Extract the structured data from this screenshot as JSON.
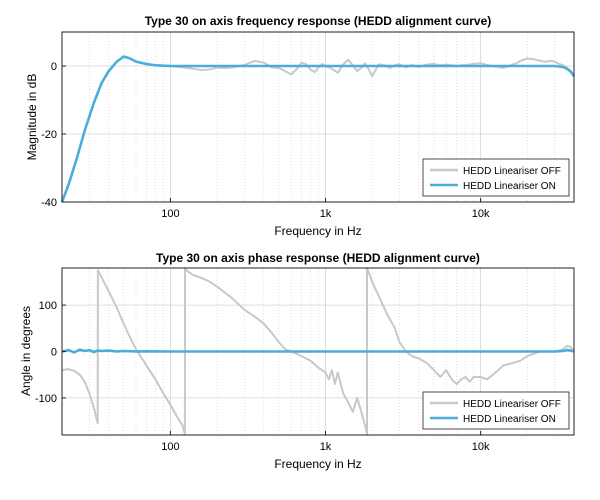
{
  "chart_data": [
    {
      "type": "line",
      "title": "Type 30 on axis frequency response (HEDD alignment curve)",
      "xlabel": "Frequency in Hz",
      "ylabel": "Magnitude in dB",
      "xscale": "log",
      "xlim": [
        20,
        40000
      ],
      "ylim": [
        -40,
        10
      ],
      "x_ticks": [
        100,
        1000,
        10000
      ],
      "x_tick_labels": [
        "100",
        "1k",
        "10k"
      ],
      "y_ticks": [
        -40,
        -20,
        0
      ],
      "y_tick_labels": [
        "-40",
        "-20",
        "0"
      ],
      "grid": true,
      "legend_position": "bottom-right",
      "series": [
        {
          "name": "HEDD Lineariser OFF",
          "color": "#c8c8c8",
          "x": [
            20,
            22,
            25,
            28,
            32,
            36,
            40,
            45,
            50,
            55,
            60,
            70,
            80,
            90,
            100,
            120,
            140,
            160,
            180,
            200,
            230,
            260,
            300,
            350,
            400,
            450,
            500,
            550,
            600,
            650,
            700,
            750,
            800,
            850,
            900,
            950,
            1000,
            1100,
            1200,
            1300,
            1400,
            1500,
            1600,
            1700,
            1800,
            1900,
            2000,
            2200,
            2400,
            2600,
            2800,
            3000,
            3300,
            3600,
            4000,
            4500,
            5000,
            5500,
            6000,
            7000,
            8000,
            9000,
            10000,
            11000,
            12000,
            13000,
            14000,
            15000,
            16000,
            17000,
            18000,
            20000,
            22000,
            24000,
            26000,
            28000,
            30000,
            32000,
            34000,
            36000,
            38000,
            40000
          ],
          "y": [
            -40,
            -35,
            -27,
            -19,
            -11,
            -5,
            -1.5,
            1.2,
            2.8,
            2.2,
            1.3,
            0.6,
            0.2,
            0.1,
            0,
            -0.4,
            -0.8,
            -1.2,
            -1.0,
            -0.5,
            -0.6,
            -0.3,
            0.3,
            1.5,
            1.0,
            -0.4,
            -0.6,
            -1.5,
            -2.5,
            -1.0,
            1.0,
            0.5,
            -1.0,
            -1.8,
            -0.5,
            0.6,
            0,
            -0.8,
            -2.0,
            0.5,
            1.8,
            0.2,
            -1.5,
            -0.5,
            0.8,
            -1.0,
            -3.0,
            0.5,
            0.2,
            -0.6,
            0.3,
            0.5,
            -0.4,
            0.3,
            -0.3,
            0.4,
            0.6,
            0.2,
            0.4,
            0.1,
            0.3,
            0.6,
            0.8,
            0.3,
            0,
            -0.3,
            -0.5,
            -0.2,
            0.4,
            0.8,
            1.5,
            2.2,
            2.0,
            1.6,
            1.2,
            1.5,
            1.3,
            0.6,
            0.2,
            -0.5,
            -1.5,
            -2.5
          ]
        },
        {
          "name": "HEDD Lineariser ON",
          "color": "#4aaed9",
          "x": [
            20,
            22,
            25,
            28,
            32,
            36,
            40,
            45,
            50,
            55,
            60,
            70,
            80,
            90,
            100,
            150,
            200,
            300,
            500,
            1000,
            2000,
            5000,
            10000,
            20000,
            30000,
            34000,
            36000,
            38000,
            40000
          ],
          "y": [
            -40,
            -35,
            -27,
            -19,
            -11,
            -5,
            -1.5,
            1.2,
            2.8,
            2.2,
            1.3,
            0.6,
            0.2,
            0.1,
            0,
            0,
            0,
            0,
            0,
            0,
            0,
            0,
            0,
            0,
            0,
            -0.3,
            -0.8,
            -1.6,
            -3.0
          ]
        }
      ]
    },
    {
      "type": "line",
      "title": "Type 30 on axis phase response (HEDD alignment curve)",
      "xlabel": "Frequency in Hz",
      "ylabel": "Angle in degrees",
      "xscale": "log",
      "xlim": [
        20,
        40000
      ],
      "ylim": [
        -180,
        180
      ],
      "x_ticks": [
        100,
        1000,
        10000
      ],
      "x_tick_labels": [
        "100",
        "1k",
        "10k"
      ],
      "y_ticks": [
        -100,
        0,
        100
      ],
      "y_tick_labels": [
        "-100",
        "0",
        "100"
      ],
      "grid": true,
      "legend_position": "bottom-right",
      "series": [
        {
          "name": "HEDD Lineariser OFF",
          "color": "#c8c8c8",
          "x": [
            20,
            22,
            24,
            26,
            28,
            30,
            32,
            34,
            34.1,
            36,
            40,
            45,
            50,
            55,
            60,
            70,
            80,
            90,
            100,
            110,
            120,
            124,
            124.1,
            130,
            140,
            160,
            180,
            200,
            250,
            300,
            350,
            400,
            450,
            500,
            550,
            600,
            650,
            700,
            800,
            900,
            1000,
            1050,
            1100,
            1150,
            1200,
            1300,
            1400,
            1500,
            1600,
            1700,
            1800,
            1850,
            1851,
            1900,
            2000,
            2200,
            2500,
            2800,
            3000,
            3300,
            3600,
            4000,
            4500,
            5000,
            5500,
            6000,
            6500,
            7000,
            7500,
            8000,
            8500,
            9000,
            10000,
            11000,
            12000,
            13000,
            14000,
            16000,
            18000,
            20000,
            22000,
            24000,
            26000,
            28000,
            30000,
            32000,
            34000,
            36000,
            38000,
            40000
          ],
          "y": [
            -40,
            -38,
            -42,
            -50,
            -65,
            -90,
            -120,
            -155,
            175,
            160,
            130,
            95,
            60,
            30,
            5,
            -30,
            -60,
            -90,
            -115,
            -140,
            -160,
            -178,
            180,
            172,
            165,
            158,
            150,
            140,
            115,
            90,
            75,
            60,
            40,
            20,
            5,
            0,
            -5,
            -10,
            -20,
            -35,
            -45,
            -60,
            -40,
            -70,
            -45,
            -90,
            -110,
            -130,
            -100,
            -130,
            -160,
            -178,
            180,
            170,
            150,
            120,
            80,
            50,
            20,
            0,
            -10,
            -15,
            -25,
            -40,
            -55,
            -40,
            -60,
            -70,
            -60,
            -55,
            -65,
            -55,
            -55,
            -60,
            -50,
            -40,
            -30,
            -25,
            -20,
            -10,
            -5,
            0,
            0,
            0,
            0,
            2,
            5,
            12,
            10,
            0
          ]
        },
        {
          "name": "HEDD Lineariser ON",
          "color": "#4aaed9",
          "x": [
            20,
            22,
            24,
            26,
            28,
            30,
            32,
            34,
            36,
            40,
            45,
            50,
            60,
            70,
            100,
            200,
            500,
            1000,
            2000,
            5000,
            10000,
            20000,
            30000,
            34000,
            36000,
            38000,
            40000
          ],
          "y": [
            0,
            3,
            -2,
            4,
            1,
            3,
            -1,
            2,
            1,
            2,
            0,
            1,
            0,
            0.5,
            0,
            0,
            0,
            0,
            0,
            0,
            0,
            0,
            0,
            1,
            3,
            2,
            0
          ]
        }
      ]
    }
  ]
}
